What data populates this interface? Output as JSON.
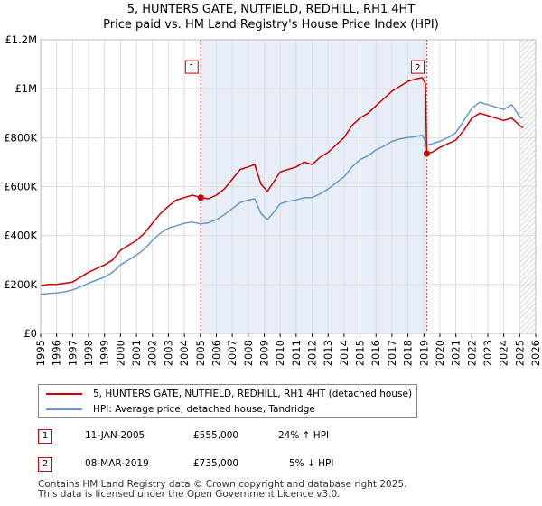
{
  "title_line1": "5, HUNTERS GATE, NUTFIELD, REDHILL, RH1 4HT",
  "title_line2": "Price paid vs. HM Land Registry's House Price Index (HPI)",
  "colors": {
    "property": "#cc0000",
    "hpi": "#6699cc",
    "shade": "#e8eef8",
    "grid": "#dddddd"
  },
  "chart_data": {
    "type": "line",
    "xlim": [
      1995,
      2026
    ],
    "ylim": [
      0,
      1200000
    ],
    "x_ticks": [
      "1995",
      "1996",
      "1997",
      "1998",
      "1999",
      "2000",
      "2001",
      "2002",
      "2003",
      "2004",
      "2005",
      "2006",
      "2007",
      "2008",
      "2009",
      "2010",
      "2011",
      "2012",
      "2013",
      "2014",
      "2015",
      "2016",
      "2017",
      "2018",
      "2019",
      "2020",
      "2021",
      "2022",
      "2023",
      "2024",
      "2025",
      "2026"
    ],
    "y_ticks": [
      {
        "value": 0,
        "label": "£0"
      },
      {
        "value": 200000,
        "label": "£200K"
      },
      {
        "value": 400000,
        "label": "£400K"
      },
      {
        "value": 600000,
        "label": "£600K"
      },
      {
        "value": 800000,
        "label": "£800K"
      },
      {
        "value": 1000000,
        "label": "£1M"
      },
      {
        "value": 1200000,
        "label": "£1.2M"
      }
    ],
    "series": [
      {
        "name": "5, HUNTERS GATE, NUTFIELD, REDHILL, RH1 4HT (detached house)",
        "color": "#cc0000",
        "points": [
          [
            1995.0,
            195000
          ],
          [
            1995.5,
            200000
          ],
          [
            1996.0,
            200000
          ],
          [
            1996.5,
            205000
          ],
          [
            1997.0,
            210000
          ],
          [
            1997.5,
            230000
          ],
          [
            1998.0,
            250000
          ],
          [
            1998.5,
            265000
          ],
          [
            1999.0,
            280000
          ],
          [
            1999.5,
            300000
          ],
          [
            2000.0,
            340000
          ],
          [
            2000.5,
            360000
          ],
          [
            2001.0,
            380000
          ],
          [
            2001.5,
            410000
          ],
          [
            2002.0,
            450000
          ],
          [
            2002.5,
            490000
          ],
          [
            2003.0,
            520000
          ],
          [
            2003.5,
            545000
          ],
          [
            2004.0,
            555000
          ],
          [
            2004.5,
            565000
          ],
          [
            2005.03,
            555000
          ],
          [
            2005.5,
            550000
          ],
          [
            2006.0,
            565000
          ],
          [
            2006.5,
            590000
          ],
          [
            2007.0,
            630000
          ],
          [
            2007.5,
            670000
          ],
          [
            2008.0,
            680000
          ],
          [
            2008.4,
            690000
          ],
          [
            2008.8,
            610000
          ],
          [
            2009.2,
            580000
          ],
          [
            2009.6,
            620000
          ],
          [
            2010.0,
            660000
          ],
          [
            2010.5,
            670000
          ],
          [
            2011.0,
            680000
          ],
          [
            2011.5,
            700000
          ],
          [
            2012.0,
            690000
          ],
          [
            2012.5,
            720000
          ],
          [
            2013.0,
            740000
          ],
          [
            2013.5,
            770000
          ],
          [
            2014.0,
            800000
          ],
          [
            2014.5,
            850000
          ],
          [
            2015.0,
            880000
          ],
          [
            2015.5,
            900000
          ],
          [
            2016.0,
            930000
          ],
          [
            2016.5,
            960000
          ],
          [
            2017.0,
            990000
          ],
          [
            2017.5,
            1010000
          ],
          [
            2018.0,
            1030000
          ],
          [
            2018.5,
            1040000
          ],
          [
            2018.9,
            1045000
          ],
          [
            2019.1,
            1020000
          ],
          [
            2019.18,
            735000
          ],
          [
            2019.5,
            740000
          ],
          [
            2020.0,
            760000
          ],
          [
            2020.5,
            775000
          ],
          [
            2021.0,
            790000
          ],
          [
            2021.5,
            830000
          ],
          [
            2022.0,
            880000
          ],
          [
            2022.5,
            900000
          ],
          [
            2023.0,
            890000
          ],
          [
            2023.5,
            880000
          ],
          [
            2024.0,
            870000
          ],
          [
            2024.5,
            880000
          ],
          [
            2025.0,
            850000
          ],
          [
            2025.2,
            840000
          ]
        ]
      },
      {
        "name": "HPI: Average price, detached house, Tandridge",
        "color": "#6699cc",
        "points": [
          [
            1995.0,
            160000
          ],
          [
            1995.5,
            163000
          ],
          [
            1996.0,
            165000
          ],
          [
            1996.5,
            170000
          ],
          [
            1997.0,
            178000
          ],
          [
            1997.5,
            190000
          ],
          [
            1998.0,
            205000
          ],
          [
            1998.5,
            218000
          ],
          [
            1999.0,
            230000
          ],
          [
            1999.5,
            250000
          ],
          [
            2000.0,
            280000
          ],
          [
            2000.5,
            300000
          ],
          [
            2001.0,
            320000
          ],
          [
            2001.5,
            345000
          ],
          [
            2002.0,
            380000
          ],
          [
            2002.5,
            410000
          ],
          [
            2003.0,
            430000
          ],
          [
            2003.5,
            440000
          ],
          [
            2004.0,
            450000
          ],
          [
            2004.5,
            455000
          ],
          [
            2005.0,
            448000
          ],
          [
            2005.5,
            452000
          ],
          [
            2006.0,
            465000
          ],
          [
            2006.5,
            485000
          ],
          [
            2007.0,
            510000
          ],
          [
            2007.5,
            535000
          ],
          [
            2008.0,
            545000
          ],
          [
            2008.4,
            550000
          ],
          [
            2008.8,
            490000
          ],
          [
            2009.2,
            465000
          ],
          [
            2009.6,
            495000
          ],
          [
            2010.0,
            530000
          ],
          [
            2010.5,
            540000
          ],
          [
            2011.0,
            545000
          ],
          [
            2011.5,
            555000
          ],
          [
            2012.0,
            555000
          ],
          [
            2012.5,
            570000
          ],
          [
            2013.0,
            590000
          ],
          [
            2013.5,
            615000
          ],
          [
            2014.0,
            640000
          ],
          [
            2014.5,
            680000
          ],
          [
            2015.0,
            710000
          ],
          [
            2015.5,
            725000
          ],
          [
            2016.0,
            750000
          ],
          [
            2016.5,
            765000
          ],
          [
            2017.0,
            785000
          ],
          [
            2017.5,
            795000
          ],
          [
            2018.0,
            800000
          ],
          [
            2018.5,
            805000
          ],
          [
            2018.9,
            810000
          ],
          [
            2019.2,
            770000
          ],
          [
            2019.5,
            775000
          ],
          [
            2020.0,
            785000
          ],
          [
            2020.5,
            800000
          ],
          [
            2021.0,
            820000
          ],
          [
            2021.5,
            870000
          ],
          [
            2022.0,
            920000
          ],
          [
            2022.5,
            945000
          ],
          [
            2023.0,
            935000
          ],
          [
            2023.5,
            925000
          ],
          [
            2024.0,
            915000
          ],
          [
            2024.5,
            935000
          ],
          [
            2025.0,
            885000
          ],
          [
            2025.2,
            880000
          ]
        ]
      }
    ],
    "sales": [
      {
        "label": "1",
        "x": 2005.03,
        "y": 555000
      },
      {
        "label": "2",
        "x": 2019.18,
        "y": 735000
      }
    ],
    "hatched_from": 2025.0
  },
  "legend": {
    "property_label": "5, HUNTERS GATE, NUTFIELD, REDHILL, RH1 4HT (detached house)",
    "hpi_label": "HPI: Average price, detached house, Tandridge"
  },
  "sales_table": [
    {
      "num": "1",
      "date": "11-JAN-2005",
      "price": "£555,000",
      "hpi": "24% ↑ HPI"
    },
    {
      "num": "2",
      "date": "08-MAR-2019",
      "price": "£735,000",
      "hpi": "5% ↓ HPI"
    }
  ],
  "footer_line1": "Contains HM Land Registry data © Crown copyright and database right 2025.",
  "footer_line2": "This data is licensed under the Open Government Licence v3.0."
}
